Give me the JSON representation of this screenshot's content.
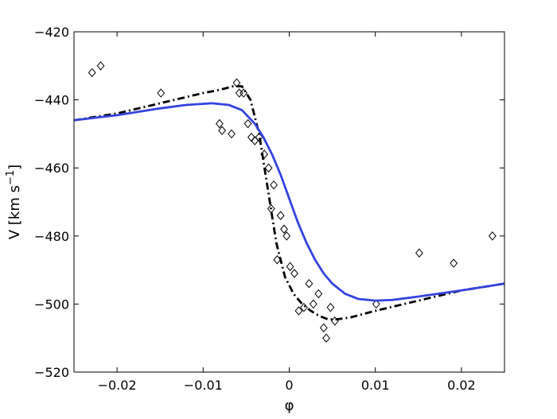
{
  "chart_data": {
    "type": "scatter",
    "xlabel": "φ",
    "ylabel": "V [km s",
    "ylabel_sup": "−1",
    "ylabel_close": "]",
    "xlim": [
      -0.025,
      0.025
    ],
    "ylim": [
      -520,
      -420
    ],
    "x_ticks": [
      -0.02,
      -0.01,
      0,
      0.01,
      0.02
    ],
    "x_tick_labels": [
      "−0.02",
      "−0.01",
      "0",
      "0.01",
      "0.02"
    ],
    "y_ticks": [
      -520,
      -500,
      -480,
      -460,
      -440,
      -420
    ],
    "y_tick_labels": [
      "−520",
      "−500",
      "−480",
      "−460",
      "−440",
      "−420"
    ],
    "grid": false,
    "series": [
      {
        "marker": "diamond-open",
        "color": "#000000",
        "x": [
          -0.0229,
          -0.0219,
          -0.0149,
          -0.0061,
          -0.0058,
          -0.0053,
          -0.0081,
          -0.0078,
          -0.0067,
          -0.0048,
          -0.0044,
          -0.004,
          -0.0035,
          -0.0029,
          -0.0024,
          -0.0021,
          -0.0018,
          -0.0014,
          -0.001,
          -0.0006,
          -0.0003,
          0.0001,
          0.0006,
          0.0011,
          0.0017,
          0.0023,
          0.0028,
          0.0034,
          0.004,
          0.0043,
          0.0048,
          0.0053,
          0.0101,
          0.0151,
          0.0191,
          0.0236
        ],
        "y": [
          -432,
          -430,
          -438,
          -435,
          -438,
          -438,
          -447,
          -449,
          -450,
          -447,
          -451,
          -452,
          -451,
          -456,
          -460,
          -472,
          -465,
          -487,
          -474,
          -478,
          -480,
          -489,
          -491,
          -502,
          -501,
          -494,
          -500,
          -497,
          -507,
          -510,
          -501,
          -505,
          -500,
          -485,
          -488,
          -480
        ]
      },
      {
        "line": "dash-dot",
        "color": "#000000",
        "x": [
          -0.025,
          -0.02,
          -0.015,
          -0.01,
          -0.008,
          -0.0065,
          -0.0055,
          -0.0045,
          -0.0035,
          -0.0025,
          -0.0015,
          -0.0005,
          0.0005,
          0.0015,
          0.0025,
          0.0035,
          0.0045,
          0.0055,
          0.007,
          0.01,
          0.015,
          0.02,
          0.025
        ],
        "y": [
          -446,
          -444,
          -441,
          -438,
          -437,
          -436,
          -436,
          -440,
          -450,
          -466,
          -482,
          -492,
          -497,
          -500,
          -502,
          -503.5,
          -504.5,
          -504.5,
          -504,
          -502,
          -499,
          -496,
          -494
        ]
      },
      {
        "line": "solid",
        "color": "#3344dd",
        "x": [
          -0.025,
          -0.02,
          -0.015,
          -0.012,
          -0.009,
          -0.007,
          -0.0055,
          -0.004,
          -0.003,
          -0.002,
          -0.001,
          0,
          0.001,
          0.002,
          0.003,
          0.004,
          0.005,
          0.0065,
          0.008,
          0.01,
          0.012,
          0.015,
          0.02,
          0.025
        ],
        "y": [
          -446,
          -444.5,
          -442.5,
          -441.5,
          -441,
          -441.5,
          -443,
          -447,
          -451,
          -456,
          -462,
          -469,
          -476,
          -482,
          -487,
          -491,
          -494,
          -497,
          -498.5,
          -499,
          -498.8,
          -497.8,
          -496,
          -494
        ]
      }
    ]
  }
}
